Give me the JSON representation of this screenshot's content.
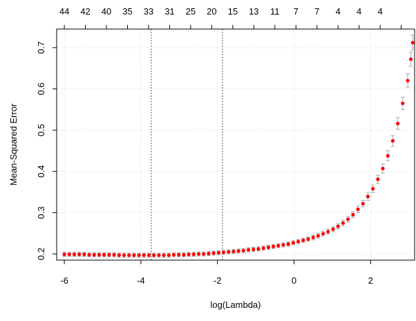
{
  "chart_data": {
    "type": "scatter",
    "title": "",
    "xlabel": "log(Lambda)",
    "ylabel": "Mean-Squared Error",
    "xlim": [
      -6.2,
      3.15
    ],
    "ylim": [
      0.185,
      0.745
    ],
    "x_ticks": [
      -6,
      -4,
      -2,
      0,
      2
    ],
    "y_ticks": [
      0.2,
      0.3,
      0.4,
      0.5,
      0.6,
      0.7
    ],
    "grid": true,
    "top_axis": {
      "label_positions": [
        -6.0,
        -5.45,
        -4.9,
        -4.35,
        -3.8,
        -3.25,
        -2.7,
        -2.15,
        -1.6,
        -1.05,
        -0.5,
        0.05,
        0.6,
        1.15,
        1.7,
        2.25,
        2.8
      ],
      "labels": [
        "44",
        "42",
        "40",
        "35",
        "33",
        "31",
        "25",
        "20",
        "15",
        "13",
        "11",
        "7",
        "7",
        "4",
        "4",
        "4",
        ""
      ]
    },
    "reference_lines": [
      -3.73,
      -1.87
    ],
    "point_color": "#ff0000",
    "errorbar_color": "#a9a9a9",
    "series": [
      {
        "points": [
          [
            -6.0,
            0.199,
            0.005
          ],
          [
            -5.87,
            0.199,
            0.005
          ],
          [
            -5.74,
            0.199,
            0.005
          ],
          [
            -5.61,
            0.199,
            0.005
          ],
          [
            -5.48,
            0.199,
            0.005
          ],
          [
            -5.35,
            0.198,
            0.005
          ],
          [
            -5.22,
            0.198,
            0.005
          ],
          [
            -5.09,
            0.198,
            0.005
          ],
          [
            -4.96,
            0.198,
            0.005
          ],
          [
            -4.83,
            0.198,
            0.005
          ],
          [
            -4.7,
            0.198,
            0.005
          ],
          [
            -4.57,
            0.197,
            0.005
          ],
          [
            -4.44,
            0.197,
            0.005
          ],
          [
            -4.31,
            0.197,
            0.005
          ],
          [
            -4.18,
            0.197,
            0.005
          ],
          [
            -4.05,
            0.197,
            0.005
          ],
          [
            -3.92,
            0.197,
            0.005
          ],
          [
            -3.79,
            0.197,
            0.005
          ],
          [
            -3.66,
            0.197,
            0.005
          ],
          [
            -3.53,
            0.197,
            0.005
          ],
          [
            -3.4,
            0.197,
            0.005
          ],
          [
            -3.27,
            0.197,
            0.005
          ],
          [
            -3.14,
            0.198,
            0.005
          ],
          [
            -3.01,
            0.198,
            0.005
          ],
          [
            -2.88,
            0.198,
            0.005
          ],
          [
            -2.75,
            0.199,
            0.005
          ],
          [
            -2.62,
            0.199,
            0.005
          ],
          [
            -2.49,
            0.2,
            0.005
          ],
          [
            -2.36,
            0.2,
            0.005
          ],
          [
            -2.23,
            0.201,
            0.005
          ],
          [
            -2.1,
            0.202,
            0.005
          ],
          [
            -1.97,
            0.203,
            0.005
          ],
          [
            -1.84,
            0.204,
            0.005
          ],
          [
            -1.71,
            0.205,
            0.005
          ],
          [
            -1.58,
            0.206,
            0.005
          ],
          [
            -1.45,
            0.207,
            0.005
          ],
          [
            -1.32,
            0.208,
            0.005
          ],
          [
            -1.19,
            0.21,
            0.005
          ],
          [
            -1.06,
            0.211,
            0.005
          ],
          [
            -0.93,
            0.212,
            0.005
          ],
          [
            -0.8,
            0.214,
            0.005
          ],
          [
            -0.67,
            0.216,
            0.005
          ],
          [
            -0.54,
            0.218,
            0.005
          ],
          [
            -0.41,
            0.22,
            0.005
          ],
          [
            -0.28,
            0.222,
            0.005
          ],
          [
            -0.15,
            0.224,
            0.005
          ],
          [
            -0.02,
            0.227,
            0.005
          ],
          [
            0.11,
            0.23,
            0.005
          ],
          [
            0.24,
            0.233,
            0.005
          ],
          [
            0.37,
            0.236,
            0.005
          ],
          [
            0.5,
            0.24,
            0.006
          ],
          [
            0.63,
            0.244,
            0.006
          ],
          [
            0.76,
            0.249,
            0.006
          ],
          [
            0.89,
            0.254,
            0.006
          ],
          [
            1.02,
            0.26,
            0.006
          ],
          [
            1.15,
            0.267,
            0.006
          ],
          [
            1.28,
            0.275,
            0.007
          ],
          [
            1.41,
            0.284,
            0.007
          ],
          [
            1.54,
            0.295,
            0.007
          ],
          [
            1.67,
            0.308,
            0.008
          ],
          [
            1.8,
            0.322,
            0.008
          ],
          [
            1.93,
            0.339,
            0.009
          ],
          [
            2.06,
            0.358,
            0.009
          ],
          [
            2.19,
            0.381,
            0.01
          ],
          [
            2.32,
            0.407,
            0.011
          ],
          [
            2.45,
            0.438,
            0.012
          ],
          [
            2.58,
            0.474,
            0.013
          ],
          [
            2.71,
            0.516,
            0.014
          ],
          [
            2.84,
            0.565,
            0.015
          ],
          [
            2.97,
            0.62,
            0.016
          ],
          [
            3.05,
            0.672,
            0.017
          ],
          [
            3.1,
            0.712,
            0.018
          ]
        ]
      }
    ]
  }
}
